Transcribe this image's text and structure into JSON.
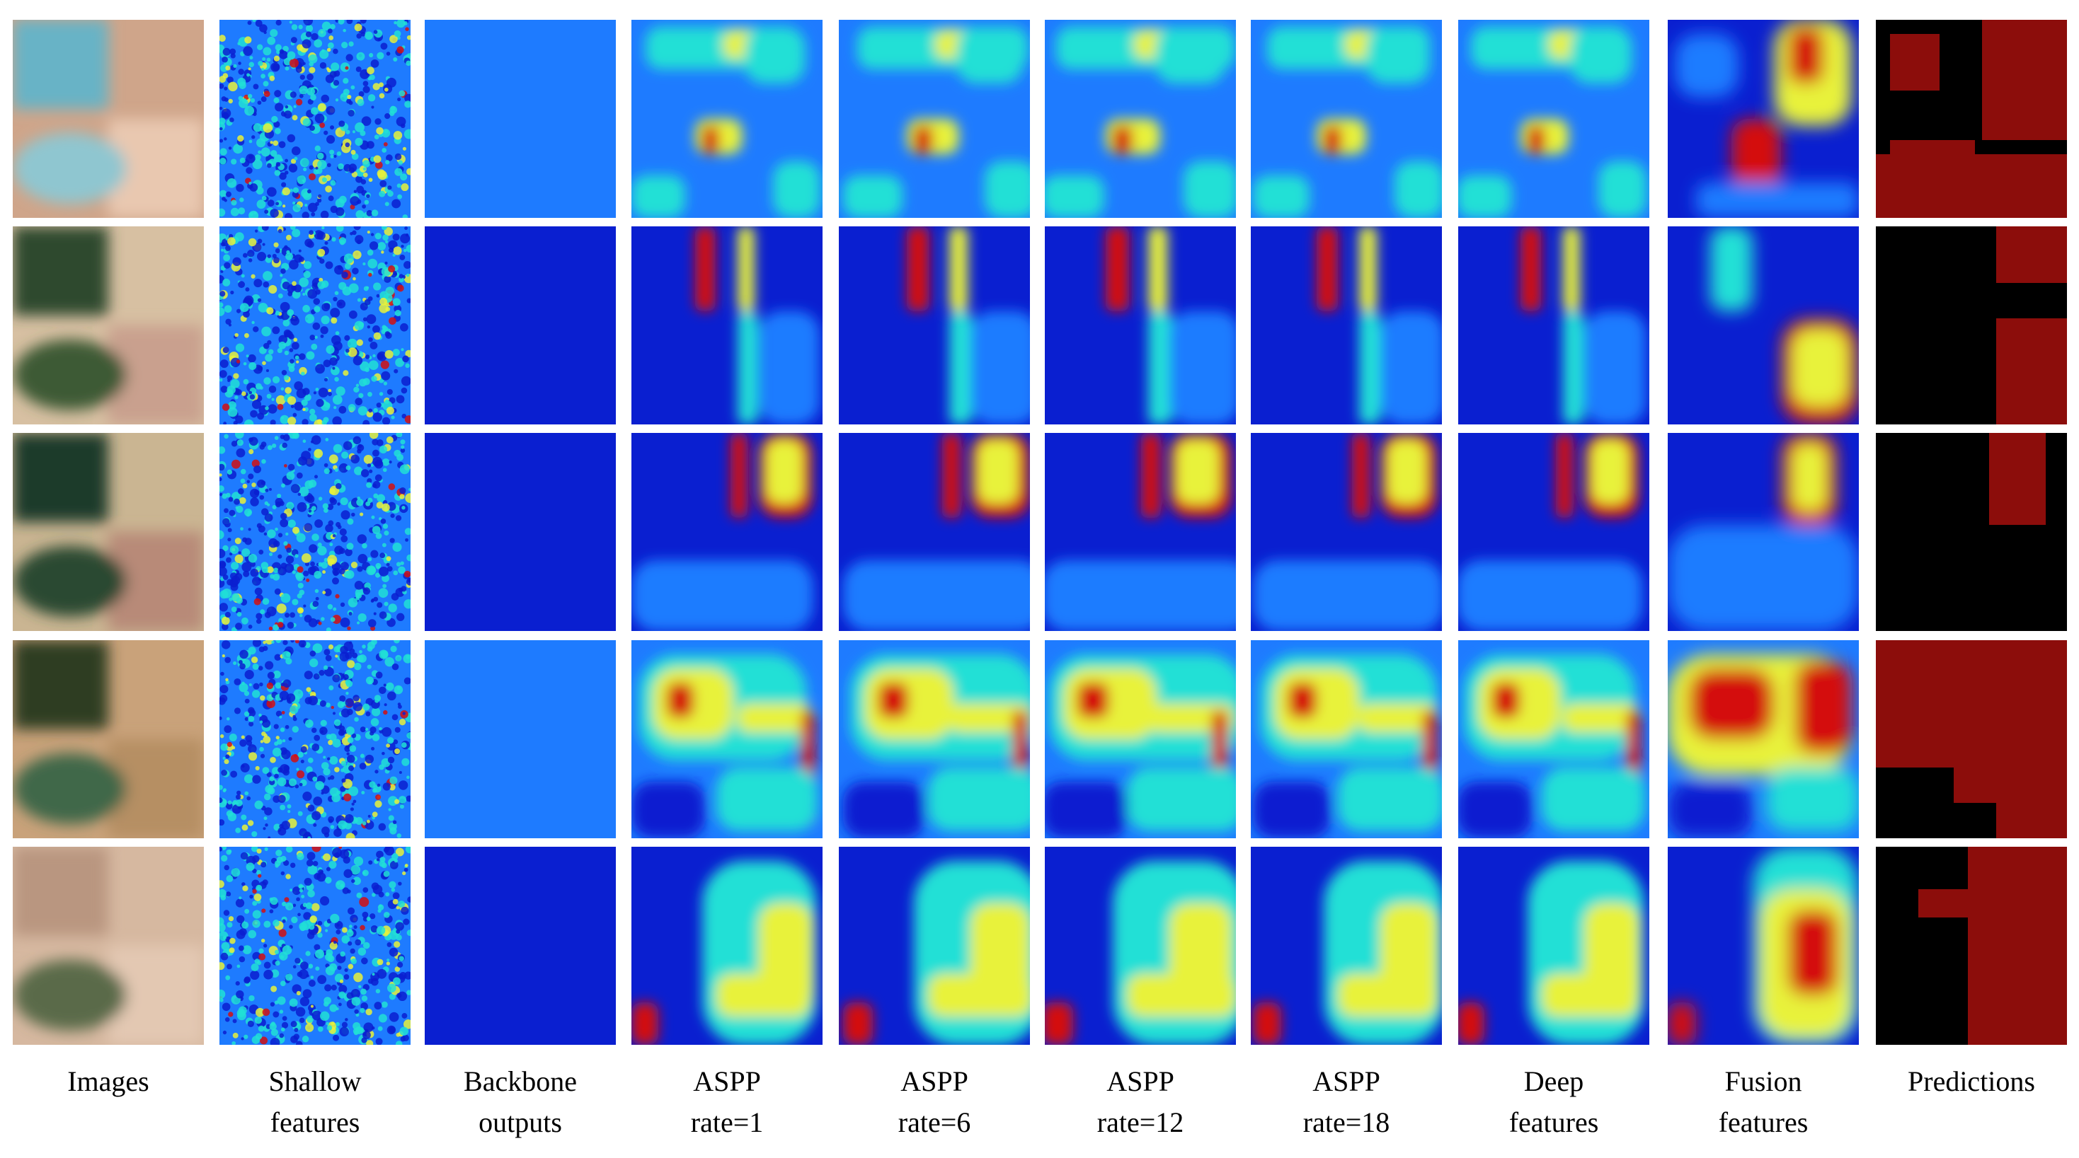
{
  "figure": {
    "columns": [
      {
        "id": "images",
        "kind": "photo",
        "label_lines": [
          "Images"
        ]
      },
      {
        "id": "shallow",
        "kind": "shallow",
        "label_lines": [
          "Shallow",
          "features"
        ]
      },
      {
        "id": "backbone",
        "kind": "heat",
        "label_lines": [
          "Backbone",
          "outputs"
        ]
      },
      {
        "id": "aspp1",
        "kind": "heat",
        "label_lines": [
          "ASPP",
          "rate=1"
        ]
      },
      {
        "id": "aspp6",
        "kind": "heat",
        "label_lines": [
          "ASPP",
          "rate=6"
        ]
      },
      {
        "id": "aspp12",
        "kind": "heat",
        "label_lines": [
          "ASPP",
          "rate=12"
        ]
      },
      {
        "id": "aspp18",
        "kind": "heat",
        "label_lines": [
          "ASPP",
          "rate=18"
        ]
      },
      {
        "id": "deep",
        "kind": "heat",
        "label_lines": [
          "Deep",
          "features"
        ]
      },
      {
        "id": "fusion",
        "kind": "fusion",
        "label_lines": [
          "Fusion",
          "features"
        ]
      },
      {
        "id": "pred",
        "kind": "pred",
        "label_lines": [
          "Predictions"
        ]
      }
    ],
    "row_count": 5,
    "colors": {
      "heat_low": "#0a1fd0",
      "heat_mid_low": "#1e7bff",
      "heat_mid": "#21e0d6",
      "heat_mid_high": "#e8f23a",
      "heat_high": "#d40f10",
      "pred_positive": "#8c0d0b",
      "pred_negative": "#000000"
    }
  }
}
